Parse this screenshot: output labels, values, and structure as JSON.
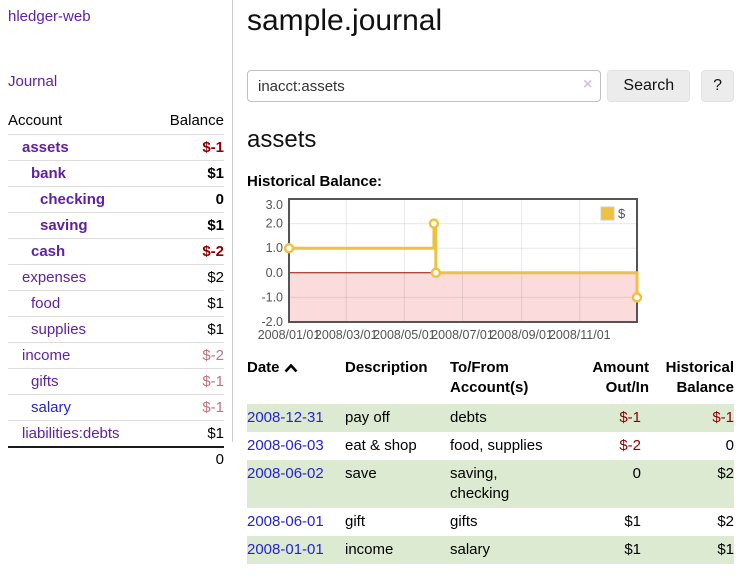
{
  "sidebar": {
    "brand": "hledger-web",
    "nav_journal": "Journal",
    "accounts_table": {
      "col_account": "Account",
      "col_balance": "Balance",
      "rows": [
        {
          "account": "assets",
          "balance": "$-1",
          "acct_cls": "d1 strong",
          "bal_cls": "neg strong"
        },
        {
          "account": "bank",
          "balance": "$1",
          "acct_cls": "d2 strong",
          "bal_cls": "strong"
        },
        {
          "account": "checking",
          "balance": "0",
          "acct_cls": "d3 strong",
          "bal_cls": "strong"
        },
        {
          "account": "saving",
          "balance": "$1",
          "acct_cls": "d3 strong",
          "bal_cls": "strong"
        },
        {
          "account": "cash",
          "balance": "$-2",
          "acct_cls": "d2 strong",
          "bal_cls": "neg strong"
        },
        {
          "account": "expenses",
          "balance": "$2",
          "acct_cls": "d1",
          "bal_cls": ""
        },
        {
          "account": "food",
          "balance": "$1",
          "acct_cls": "d2",
          "bal_cls": ""
        },
        {
          "account": "supplies",
          "balance": "$1",
          "acct_cls": "d2",
          "bal_cls": ""
        },
        {
          "account": "income",
          "balance": "$-2",
          "acct_cls": "d1",
          "bal_cls": "negmuted"
        },
        {
          "account": "gifts",
          "balance": "$-1",
          "acct_cls": "d2",
          "bal_cls": "negmuted"
        },
        {
          "account": "salary",
          "balance": "$-1",
          "acct_cls": "d2 bluelink",
          "bal_cls": "negmuted"
        },
        {
          "account": "liabilities:debts",
          "balance": "$1",
          "acct_cls": "d1",
          "bal_cls": ""
        }
      ],
      "total": "0"
    }
  },
  "header": {
    "title": "sample.journal"
  },
  "search": {
    "query": "inacct:assets",
    "clear_icon": "×",
    "button_label": "Search",
    "help_label": "?"
  },
  "account_page": {
    "heading": "assets",
    "chart_label": "Historical Balance:"
  },
  "chart_data": {
    "type": "line",
    "title": "Historical Balance:",
    "series": [
      {
        "name": "$",
        "color": "#edc240",
        "step": true,
        "points": [
          {
            "date": "2008-01-01",
            "day": 0,
            "value": 1
          },
          {
            "date": "2008-06-01",
            "day": 152,
            "value": 2
          },
          {
            "date": "2008-06-03",
            "day": 154,
            "value": 0
          },
          {
            "date": "2008-12-31",
            "day": 365,
            "value": -1
          }
        ]
      }
    ],
    "x_range_days": [
      0,
      365
    ],
    "x_ticks": [
      {
        "day": 0,
        "label": "2008/01/01"
      },
      {
        "day": 60,
        "label": "2008/03/01"
      },
      {
        "day": 121,
        "label": "2008/05/01"
      },
      {
        "day": 182,
        "label": "2008/07/01"
      },
      {
        "day": 244,
        "label": "2008/09/01"
      },
      {
        "day": 305,
        "label": "2008/11/01"
      }
    ],
    "ylim": [
      -2,
      3
    ],
    "y_ticks": [
      3,
      2,
      1,
      0,
      -1,
      -2
    ],
    "y_tick_labels": [
      "3.0",
      "2.0",
      "1.0",
      "0.0",
      "-1.0",
      "-2.0"
    ],
    "grid": true,
    "legend": {
      "label": "$",
      "position": "top-right"
    },
    "negative_region_color": "#fbdbdb",
    "zero_line_color": "#aa0000",
    "border_color": "#545454",
    "tick_text_color": "#545454"
  },
  "register": {
    "columns": {
      "date": "Date",
      "description": "Description",
      "tofrom": {
        "l1": "To/From",
        "l2": "Account(s)"
      },
      "amount": {
        "l1": "Amount",
        "l2": "Out/In"
      },
      "balance": {
        "l1": "Historical",
        "l2": "Balance"
      }
    },
    "rows": [
      {
        "date": "2008-12-31",
        "description": "pay off",
        "accounts": "debts",
        "amount": "$-1",
        "balance": "$-1",
        "amount_cls": "neg",
        "balance_cls": "neg",
        "stripe": "green"
      },
      {
        "date": "2008-06-03",
        "description": "eat & shop",
        "accounts": "food, supplies",
        "amount": "$-2",
        "balance": "0",
        "amount_cls": "neg",
        "balance_cls": "",
        "stripe": ""
      },
      {
        "date": "2008-06-02",
        "description": "save",
        "accounts": "saving, checking",
        "amount": "0",
        "balance": "$2",
        "amount_cls": "",
        "balance_cls": "",
        "stripe": "green"
      },
      {
        "date": "2008-06-01",
        "description": "gift",
        "accounts": "gifts",
        "amount": "$1",
        "balance": "$2",
        "amount_cls": "",
        "balance_cls": "",
        "stripe": ""
      },
      {
        "date": "2008-01-01",
        "description": "income",
        "accounts": "salary",
        "amount": "$1",
        "balance": "$1",
        "amount_cls": "",
        "balance_cls": "",
        "stripe": "green"
      }
    ]
  }
}
